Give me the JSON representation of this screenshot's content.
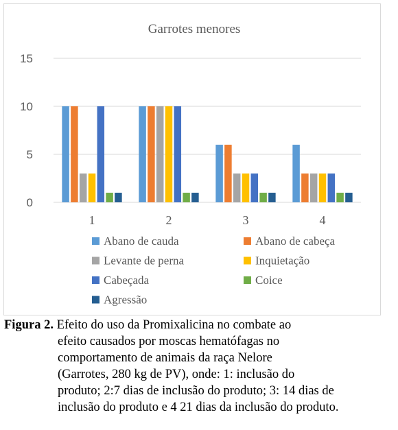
{
  "chart_data": {
    "type": "bar",
    "title": "Garrotes menores",
    "xlabel": "",
    "ylabel": "",
    "ylim": [
      0,
      15
    ],
    "yticks": [
      0,
      5,
      10,
      15
    ],
    "categories": [
      "1",
      "2",
      "3",
      "4"
    ],
    "grid": true,
    "legend_position": "bottom",
    "series": [
      {
        "name": "Abano de cauda",
        "color": "#5b9bd5",
        "values": [
          10,
          10,
          6,
          6
        ]
      },
      {
        "name": "Abano de cabeça",
        "color": "#ed7d31",
        "values": [
          10,
          10,
          6,
          3
        ]
      },
      {
        "name": "Levante de perna",
        "color": "#a5a5a5",
        "values": [
          3,
          10,
          3,
          3
        ]
      },
      {
        "name": "Inquietação",
        "color": "#ffc000",
        "values": [
          3,
          10,
          3,
          3
        ]
      },
      {
        "name": "Cabeçada",
        "color": "#4472c4",
        "values": [
          10,
          10,
          3,
          3
        ]
      },
      {
        "name": "Coice",
        "color": "#70ad47",
        "values": [
          1,
          1,
          1,
          1
        ]
      },
      {
        "name": "Agressão",
        "color": "#255e91",
        "values": [
          1,
          1,
          1,
          1
        ]
      }
    ]
  },
  "caption": {
    "label": "Figura 2.",
    "line1": " Efeito do uso da Promixalicina no combate ao",
    "line2": "efeito causados por moscas hematófagas no",
    "line3": "comportamento de animais da raça Nelore",
    "line4": "(Garrotes, 280 kg de PV), onde: 1: inclusão do",
    "line5": "produto; 2:7 dias de inclusão do produto; 3: 14 dias de",
    "line6": "inclusão do produto e 4 21 dias da inclusão do produto."
  }
}
